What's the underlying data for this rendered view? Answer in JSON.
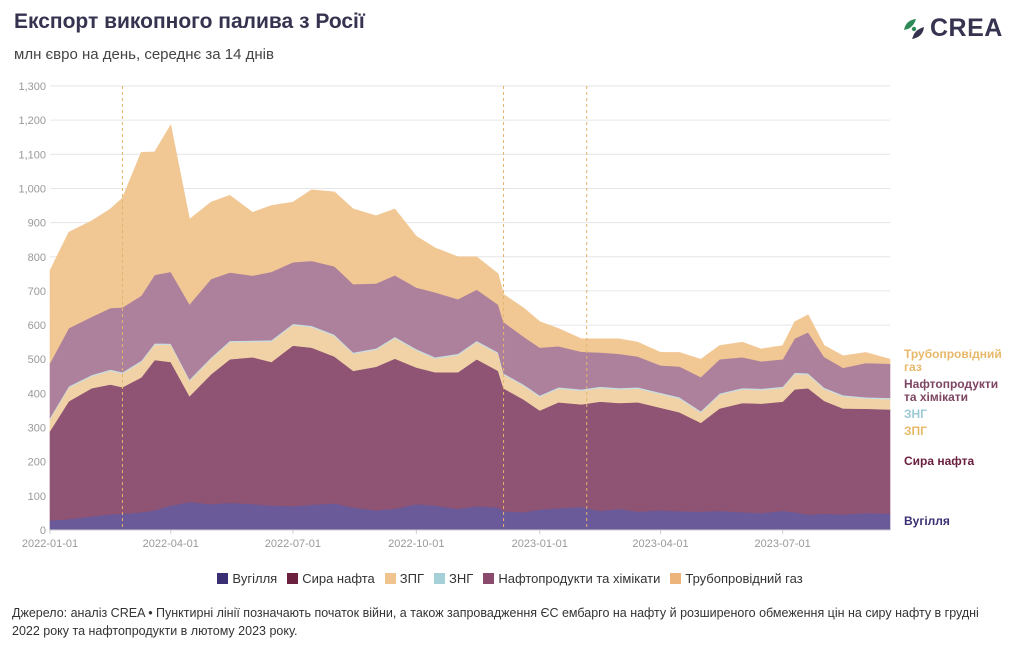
{
  "header": {
    "title": "Експорт викопного палива з Росії",
    "subtitle": "млн євро на день, середнє за 14 днів",
    "logo_text": "CREA"
  },
  "colors": {
    "coal": "#6a5a9a",
    "crude": "#8f5373",
    "lng": "#f0d2a6",
    "pipeline_lng": "#c9dde2",
    "oil_products": "#ad819b",
    "pipeline_gas": "#f1c794",
    "grid": "#e6e6e6",
    "event_line": "#e3b36d"
  },
  "right_labels": [
    {
      "text": "Трубопровідний газ",
      "lines": [
        "Трубопровідний",
        "газ"
      ],
      "color": "#e8b86a"
    },
    {
      "text": "Нафтопродукти та хімікати",
      "lines": [
        "Нафтопродукти",
        "та хімікати"
      ],
      "color": "#7d4563"
    },
    {
      "text": "ЗНГ",
      "lines": [
        "ЗНГ"
      ],
      "color": "#9ccad4"
    },
    {
      "text": "ЗПГ",
      "lines": [
        "ЗПГ"
      ],
      "color": "#e8b86a"
    },
    {
      "text": "Сира нафта",
      "lines": [
        "Сира нафта"
      ],
      "color": "#6b2040"
    },
    {
      "text": "Вугілля",
      "lines": [
        "Вугілля"
      ],
      "color": "#3a2f72"
    }
  ],
  "legend": [
    {
      "label": "Вугілля",
      "color": "#3a2f72"
    },
    {
      "label": "Сира нафта",
      "color": "#6b2040"
    },
    {
      "label": "ЗПГ",
      "color": "#f0c48e"
    },
    {
      "label": "ЗНГ",
      "color": "#a6d0d8"
    },
    {
      "label": "Нафтопродукти та хімікати",
      "color": "#8a4a6b"
    },
    {
      "label": "Трубопровідний газ",
      "color": "#ecb47a"
    }
  ],
  "source": "Джерело: аналіз CREA • Пунктирні лінії позначають початок війни, а також запровадження ЄС ембарго на нафту й розширеного обмеження цін на сиру нафту в грудні 2022 року та нафтопродукти в лютому 2023 року.",
  "chart_data": {
    "type": "area",
    "stacked": true,
    "title": "Експорт викопного палива з Росії",
    "subtitle": "млн євро на день, середнє за 14 днів",
    "y_ticks": [
      0,
      100,
      200,
      300,
      400,
      500,
      600,
      700,
      800,
      900,
      1000,
      1100,
      1200,
      1300
    ],
    "y_tick_labels": [
      "0",
      "100",
      "200",
      "300",
      "400",
      "500",
      "600",
      "700",
      "800",
      "900",
      "1,000",
      "1,100",
      "1,200",
      "1,300"
    ],
    "ylim": [
      0,
      1300
    ],
    "x_range": [
      "2022-01-01",
      "2023-09-19"
    ],
    "x_ticks": [
      "2022-01-01",
      "2022-04-01",
      "2022-07-01",
      "2022-10-01",
      "2023-01-01",
      "2023-04-01",
      "2023-07-01"
    ],
    "event_lines": [
      "2022-02-24",
      "2022-12-05",
      "2023-02-05"
    ],
    "grid": true,
    "legend_position": "bottom",
    "x": [
      "2022-01-01",
      "2022-01-15",
      "2022-02-01",
      "2022-02-15",
      "2022-02-24",
      "2022-03-10",
      "2022-03-20",
      "2022-04-01",
      "2022-04-15",
      "2022-05-01",
      "2022-05-15",
      "2022-06-01",
      "2022-06-15",
      "2022-07-01",
      "2022-07-15",
      "2022-08-01",
      "2022-08-15",
      "2022-09-01",
      "2022-09-15",
      "2022-10-01",
      "2022-10-15",
      "2022-11-01",
      "2022-11-15",
      "2022-12-01",
      "2022-12-05",
      "2022-12-20",
      "2023-01-01",
      "2023-01-15",
      "2023-02-01",
      "2023-02-15",
      "2023-03-01",
      "2023-03-15",
      "2023-04-01",
      "2023-04-15",
      "2023-05-01",
      "2023-05-15",
      "2023-06-01",
      "2023-06-15",
      "2023-07-01",
      "2023-07-10",
      "2023-07-20",
      "2023-08-01",
      "2023-08-15",
      "2023-09-01",
      "2023-09-19"
    ],
    "series": [
      {
        "name": "Вугілля",
        "values": [
          28,
          32,
          40,
          46,
          48,
          52,
          58,
          72,
          82,
          76,
          80,
          76,
          72,
          70,
          74,
          78,
          66,
          58,
          62,
          76,
          72,
          62,
          70,
          66,
          55,
          52,
          60,
          64,
          68,
          56,
          62,
          54,
          58,
          55,
          54,
          56,
          52,
          50,
          56,
          52,
          45,
          48,
          46,
          50,
          48
        ]
      },
      {
        "name": "Сира нафта",
        "values": [
          262,
          345,
          375,
          380,
          370,
          395,
          440,
          420,
          310,
          380,
          420,
          430,
          420,
          470,
          460,
          430,
          400,
          420,
          440,
          400,
          390,
          400,
          430,
          400,
          360,
          330,
          290,
          310,
          300,
          320,
          310,
          320,
          300,
          290,
          260,
          300,
          320,
          320,
          320,
          360,
          370,
          330,
          310,
          305,
          305
        ]
      },
      {
        "name": "ЗПГ",
        "values": [
          35,
          40,
          35,
          40,
          40,
          45,
          45,
          50,
          45,
          45,
          50,
          45,
          60,
          60,
          60,
          60,
          50,
          50,
          60,
          50,
          40,
          50,
          50,
          50,
          40,
          40,
          40,
          40,
          40,
          40,
          40,
          40,
          40,
          40,
          30,
          40,
          40,
          40,
          40,
          45,
          40,
          35,
          35,
          30,
          30
        ]
      },
      {
        "name": "ЗНГ",
        "values": [
          4,
          4,
          4,
          4,
          4,
          4,
          4,
          4,
          4,
          4,
          4,
          4,
          4,
          4,
          4,
          4,
          4,
          4,
          4,
          4,
          4,
          4,
          4,
          4,
          4,
          4,
          4,
          4,
          4,
          4,
          4,
          4,
          4,
          4,
          4,
          4,
          4,
          4,
          4,
          4,
          4,
          4,
          4,
          4,
          4
        ]
      },
      {
        "name": "Нафтопродукти та хімікати",
        "values": [
          160,
          170,
          170,
          180,
          190,
          190,
          200,
          210,
          220,
          230,
          200,
          190,
          200,
          180,
          190,
          200,
          200,
          190,
          180,
          180,
          190,
          160,
          150,
          140,
          150,
          140,
          140,
          120,
          110,
          100,
          100,
          90,
          80,
          90,
          100,
          100,
          90,
          80,
          80,
          100,
          120,
          90,
          80,
          100,
          100
        ]
      },
      {
        "name": "Трубопровідний газ",
        "values": [
          271,
          281,
          281,
          290,
          320,
          420,
          360,
          430,
          249,
          225,
          226,
          185,
          194,
          176,
          208,
          218,
          220,
          198,
          194,
          150,
          130,
          124,
          96,
          90,
          81,
          84,
          76,
          52,
          38,
          40,
          44,
          42,
          38,
          41,
          52,
          40,
          44,
          36,
          40,
          49,
          51,
          33,
          35,
          31,
          13
        ]
      }
    ]
  }
}
